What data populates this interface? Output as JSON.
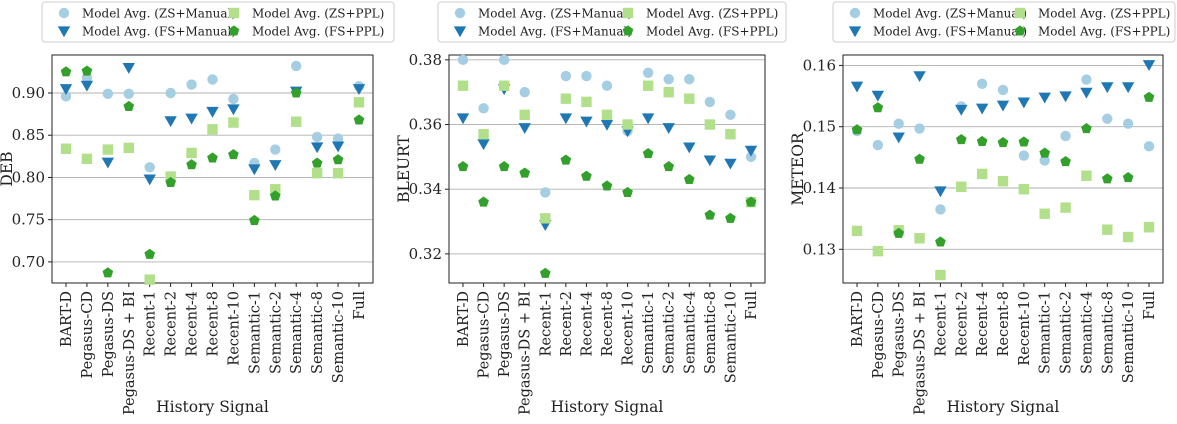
{
  "colors": {
    "zs_manual": "#a6cee3",
    "fs_manual": "#1f78b4",
    "zs_ppl": "#b2df8a",
    "fs_ppl": "#33a02c"
  },
  "legend": [
    {
      "key": "zs_manual",
      "label": "Model Avg. (ZS+Manual)",
      "marker": "circle"
    },
    {
      "key": "fs_manual",
      "label": "Model Avg. (FS+Manual)",
      "marker": "triangle-down"
    },
    {
      "key": "zs_ppl",
      "label": "Model Avg. (ZS+PPL)",
      "marker": "square"
    },
    {
      "key": "fs_ppl",
      "label": "Model Avg. (FS+PPL)",
      "marker": "pentagon"
    }
  ],
  "chart_data": [
    {
      "type": "scatter",
      "ylabel": "DEB",
      "xlabel": "History Signal",
      "ylim": [
        0.675,
        0.945
      ],
      "yticks": [
        "0.70",
        "0.75",
        "0.80",
        "0.85",
        "0.90"
      ],
      "ytick_values": [
        0.7,
        0.75,
        0.8,
        0.85,
        0.9
      ],
      "grid": "horizontal",
      "legend_placement": "top",
      "categories": [
        "BART-D",
        "Pegasus-CD",
        "Pegasus-DS",
        "Pegasus-DS + BI",
        "Recent-1",
        "Recent-2",
        "Recent-4",
        "Recent-8",
        "Recent-10",
        "Semantic-1",
        "Semantic-2",
        "Semantic-4",
        "Semantic-8",
        "Semantic-10",
        "Full"
      ],
      "series": [
        {
          "key": "zs_manual",
          "name": "Model Avg. (ZS+Manual)",
          "values": [
            0.896,
            0.918,
            0.899,
            0.899,
            0.812,
            0.9,
            0.91,
            0.916,
            0.893,
            0.817,
            0.833,
            0.932,
            0.848,
            0.846,
            0.908
          ]
        },
        {
          "key": "fs_manual",
          "name": "Model Avg. (FS+Manual)",
          "values": [
            0.905,
            0.909,
            0.818,
            0.93,
            0.798,
            0.867,
            0.87,
            0.878,
            0.881,
            0.81,
            0.815,
            0.902,
            0.836,
            0.837,
            0.905
          ]
        },
        {
          "key": "zs_ppl",
          "name": "Model Avg. (ZS+PPL)",
          "values": [
            0.834,
            0.822,
            0.833,
            0.835,
            0.679,
            0.801,
            0.829,
            0.857,
            0.865,
            0.779,
            0.786,
            0.866,
            0.805,
            0.805,
            0.889
          ]
        },
        {
          "key": "fs_ppl",
          "name": "Model Avg. (FS+PPL)",
          "values": [
            0.925,
            0.926,
            0.687,
            0.884,
            0.709,
            0.794,
            0.815,
            0.823,
            0.827,
            0.749,
            0.778,
            0.9,
            0.817,
            0.821,
            0.868
          ]
        }
      ]
    },
    {
      "type": "scatter",
      "ylabel": "BLEURT",
      "xlabel": "History Signal",
      "ylim": [
        0.311,
        0.3815
      ],
      "yticks": [
        "0.32",
        "0.34",
        "0.36",
        "0.38"
      ],
      "ytick_values": [
        0.32,
        0.34,
        0.36,
        0.38
      ],
      "grid": "horizontal",
      "legend_placement": "top",
      "categories": [
        "BART-D",
        "Pegasus-CD",
        "Pegasus-DS",
        "Pegasus-DS + BI",
        "Recent-1",
        "Recent-2",
        "Recent-4",
        "Recent-8",
        "Recent-10",
        "Semantic-1",
        "Semantic-2",
        "Semantic-4",
        "Semantic-8",
        "Semantic-10",
        "Full"
      ],
      "series": [
        {
          "key": "zs_manual",
          "name": "Model Avg. (ZS+Manual)",
          "values": [
            0.38,
            0.365,
            0.38,
            0.37,
            0.339,
            0.375,
            0.375,
            0.372,
            0.358,
            0.376,
            0.374,
            0.374,
            0.367,
            0.363,
            0.35
          ]
        },
        {
          "key": "fs_manual",
          "name": "Model Avg. (FS+Manual)",
          "values": [
            0.362,
            0.354,
            0.371,
            0.359,
            0.329,
            0.362,
            0.361,
            0.36,
            0.358,
            0.362,
            0.359,
            0.353,
            0.349,
            0.348,
            0.352
          ]
        },
        {
          "key": "zs_ppl",
          "name": "Model Avg. (ZS+PPL)",
          "values": [
            0.372,
            0.357,
            0.372,
            0.363,
            0.331,
            0.368,
            0.367,
            0.363,
            0.36,
            0.372,
            0.37,
            0.368,
            0.36,
            0.357,
            0.336
          ]
        },
        {
          "key": "fs_ppl",
          "name": "Model Avg. (FS+PPL)",
          "values": [
            0.347,
            0.336,
            0.347,
            0.345,
            0.314,
            0.349,
            0.344,
            0.341,
            0.339,
            0.351,
            0.347,
            0.343,
            0.332,
            0.331,
            0.336
          ]
        }
      ]
    },
    {
      "type": "scatter",
      "ylabel": "METEOR",
      "xlabel": "History Signal",
      "ylim": [
        0.1245,
        0.1617
      ],
      "yticks": [
        "0.13",
        "0.14",
        "0.15",
        "0.16"
      ],
      "ytick_values": [
        0.13,
        0.14,
        0.15,
        0.16
      ],
      "grid": "horizontal",
      "legend_placement": "top",
      "categories": [
        "BART-D",
        "Pegasus-CD",
        "Pegasus-DS",
        "Pegasus-DS + BI",
        "Recent-1",
        "Recent-2",
        "Recent-4",
        "Recent-8",
        "Recent-10",
        "Semantic-1",
        "Semantic-2",
        "Semantic-4",
        "Semantic-8",
        "Semantic-10",
        "Full"
      ],
      "series": [
        {
          "key": "zs_manual",
          "name": "Model Avg. (ZS+Manual)",
          "values": [
            0.1493,
            0.147,
            0.1505,
            0.1497,
            0.1365,
            0.1533,
            0.157,
            0.156,
            0.1453,
            0.1445,
            0.1485,
            0.1577,
            0.1513,
            0.1505,
            0.1468
          ]
        },
        {
          "key": "fs_manual",
          "name": "Model Avg. (FS+Manual)",
          "values": [
            0.1566,
            0.1551,
            0.1483,
            0.1583,
            0.1395,
            0.1528,
            0.153,
            0.1535,
            0.154,
            0.1548,
            0.155,
            0.1556,
            0.1565,
            0.1565,
            0.1601
          ]
        },
        {
          "key": "zs_ppl",
          "name": "Model Avg. (ZS+PPL)",
          "values": [
            0.133,
            0.1297,
            0.1331,
            0.1318,
            0.1258,
            0.1402,
            0.1423,
            0.1411,
            0.1398,
            0.1358,
            0.1368,
            0.142,
            0.1332,
            0.132,
            0.1336
          ]
        },
        {
          "key": "fs_ppl",
          "name": "Model Avg. (FS+PPL)",
          "values": [
            0.1495,
            0.1531,
            0.1326,
            0.1447,
            0.1312,
            0.1479,
            0.1476,
            0.1474,
            0.1475,
            0.1457,
            0.1443,
            0.1497,
            0.1415,
            0.1417,
            0.1548
          ]
        }
      ]
    }
  ]
}
